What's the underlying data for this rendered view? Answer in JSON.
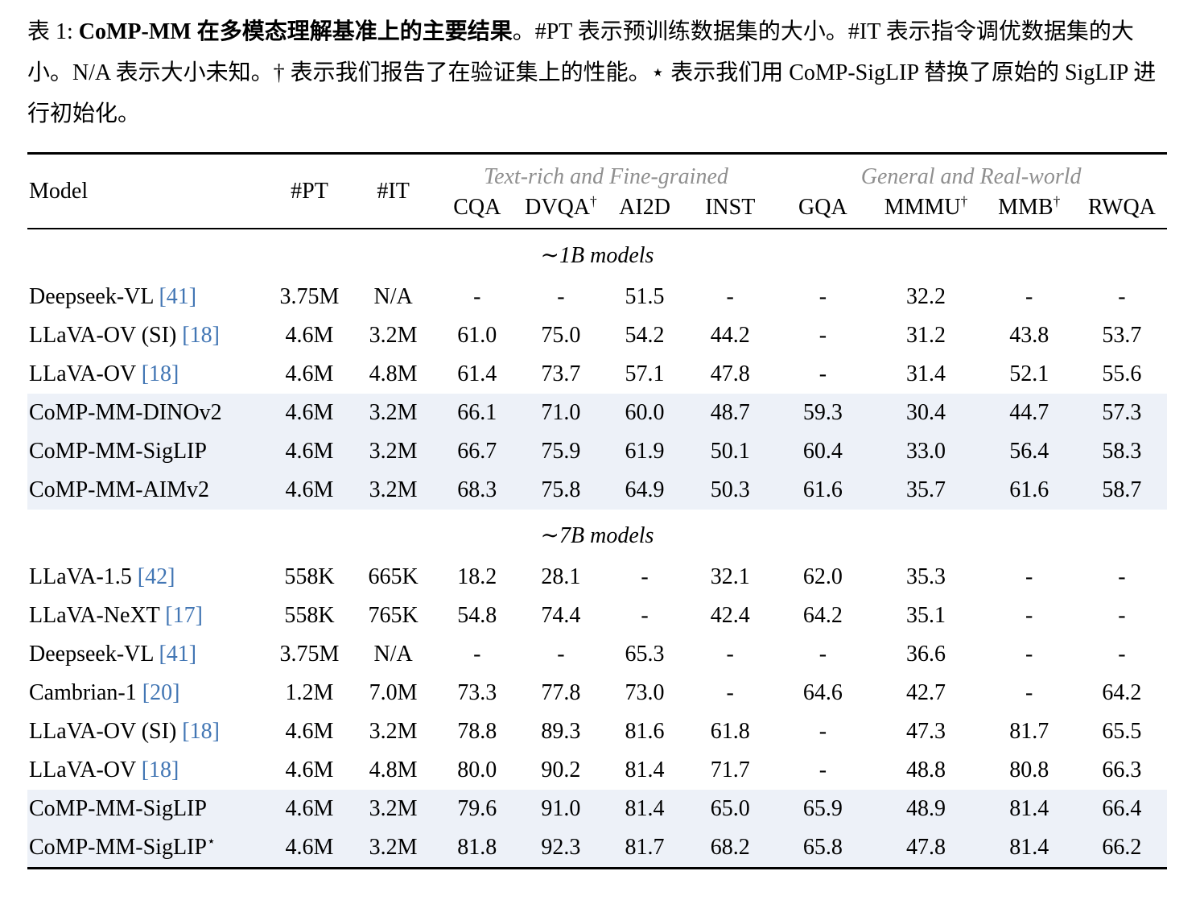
{
  "caption": {
    "prefix": "表 1: ",
    "title_bold": "CoMP-MM 在多模态理解基准上的主要结果",
    "body": "。#PT 表示预训练数据集的大小。#IT 表示指令调优数据集的大小。N/A 表示大小未知。† 表示我们报告了在验证集上的性能。⋆ 表示我们用 CoMP-SigLIP 替换了原始的 SigLIP 进行初始化。"
  },
  "colors": {
    "highlight": "#edf1f8",
    "cite_link": "#4276b4",
    "group_header": "#8f8f8f"
  },
  "table": {
    "fixed_columns": [
      {
        "key": "model",
        "label": "Model"
      },
      {
        "key": "pt",
        "label": "#PT"
      },
      {
        "key": "it",
        "label": "#IT"
      }
    ],
    "groups": [
      {
        "label": "Text-rich and Fine-grained",
        "cols": [
          {
            "label": "CQA",
            "sup": ""
          },
          {
            "label": "DVQA",
            "sup": "†"
          },
          {
            "label": "AI2D",
            "sup": ""
          },
          {
            "label": "INST",
            "sup": ""
          }
        ]
      },
      {
        "label": "General and Real-world",
        "cols": [
          {
            "label": "GQA",
            "sup": ""
          },
          {
            "label": "MMMU",
            "sup": "†"
          },
          {
            "label": "MMB",
            "sup": "†"
          },
          {
            "label": "RWQA",
            "sup": ""
          }
        ]
      }
    ],
    "sections": [
      {
        "title": "∼1B models",
        "rows": [
          {
            "model": "Deepseek-VL",
            "cite": "[41]",
            "sup": "",
            "pt": "3.75M",
            "it": "N/A",
            "highlight": false,
            "values": [
              "-",
              "-",
              "51.5",
              "-",
              "-",
              "32.2",
              "-",
              "-"
            ]
          },
          {
            "model": "LLaVA-OV (SI)",
            "cite": "[18]",
            "sup": "",
            "pt": "4.6M",
            "it": "3.2M",
            "highlight": false,
            "values": [
              "61.0",
              "75.0",
              "54.2",
              "44.2",
              "-",
              "31.2",
              "43.8",
              "53.7"
            ]
          },
          {
            "model": "LLaVA-OV",
            "cite": "[18]",
            "sup": "",
            "pt": "4.6M",
            "it": "4.8M",
            "highlight": false,
            "values": [
              "61.4",
              "73.7",
              "57.1",
              "47.8",
              "-",
              "31.4",
              "52.1",
              "55.6"
            ]
          },
          {
            "model": "CoMP-MM-DINOv2",
            "cite": "",
            "sup": "",
            "pt": "4.6M",
            "it": "3.2M",
            "highlight": true,
            "values": [
              "66.1",
              "71.0",
              "60.0",
              "48.7",
              "59.3",
              "30.4",
              "44.7",
              "57.3"
            ]
          },
          {
            "model": "CoMP-MM-SigLIP",
            "cite": "",
            "sup": "",
            "pt": "4.6M",
            "it": "3.2M",
            "highlight": true,
            "values": [
              "66.7",
              "75.9",
              "61.9",
              "50.1",
              "60.4",
              "33.0",
              "56.4",
              "58.3"
            ]
          },
          {
            "model": "CoMP-MM-AIMv2",
            "cite": "",
            "sup": "",
            "pt": "4.6M",
            "it": "3.2M",
            "highlight": true,
            "values": [
              "68.3",
              "75.8",
              "64.9",
              "50.3",
              "61.6",
              "35.7",
              "61.6",
              "58.7"
            ]
          }
        ]
      },
      {
        "title": "∼7B models",
        "rows": [
          {
            "model": "LLaVA-1.5",
            "cite": "[42]",
            "sup": "",
            "pt": "558K",
            "it": "665K",
            "highlight": false,
            "values": [
              "18.2",
              "28.1",
              "-",
              "32.1",
              "62.0",
              "35.3",
              "-",
              "-"
            ]
          },
          {
            "model": "LLaVA-NeXT",
            "cite": "[17]",
            "sup": "",
            "pt": "558K",
            "it": "765K",
            "highlight": false,
            "values": [
              "54.8",
              "74.4",
              "-",
              "42.4",
              "64.2",
              "35.1",
              "-",
              "-"
            ]
          },
          {
            "model": "Deepseek-VL",
            "cite": "[41]",
            "sup": "",
            "pt": "3.75M",
            "it": "N/A",
            "highlight": false,
            "values": [
              "-",
              "-",
              "65.3",
              "-",
              "-",
              "36.6",
              "-",
              "-"
            ]
          },
          {
            "model": "Cambrian-1",
            "cite": "[20]",
            "sup": "",
            "pt": "1.2M",
            "it": "7.0M",
            "highlight": false,
            "values": [
              "73.3",
              "77.8",
              "73.0",
              "-",
              "64.6",
              "42.7",
              "-",
              "64.2"
            ]
          },
          {
            "model": "LLaVA-OV (SI)",
            "cite": "[18]",
            "sup": "",
            "pt": "4.6M",
            "it": "3.2M",
            "highlight": false,
            "values": [
              "78.8",
              "89.3",
              "81.6",
              "61.8",
              "-",
              "47.3",
              "81.7",
              "65.5"
            ]
          },
          {
            "model": "LLaVA-OV",
            "cite": "[18]",
            "sup": "",
            "pt": "4.6M",
            "it": "4.8M",
            "highlight": false,
            "values": [
              "80.0",
              "90.2",
              "81.4",
              "71.7",
              "-",
              "48.8",
              "80.8",
              "66.3"
            ]
          },
          {
            "model": "CoMP-MM-SigLIP",
            "cite": "",
            "sup": "",
            "pt": "4.6M",
            "it": "3.2M",
            "highlight": true,
            "values": [
              "79.6",
              "91.0",
              "81.4",
              "65.0",
              "65.9",
              "48.9",
              "81.4",
              "66.4"
            ]
          },
          {
            "model": "CoMP-MM-SigLIP",
            "cite": "",
            "sup": "⋆",
            "pt": "4.6M",
            "it": "3.2M",
            "highlight": true,
            "values": [
              "81.8",
              "92.3",
              "81.7",
              "68.2",
              "65.8",
              "47.8",
              "81.4",
              "66.2"
            ]
          }
        ]
      }
    ]
  }
}
